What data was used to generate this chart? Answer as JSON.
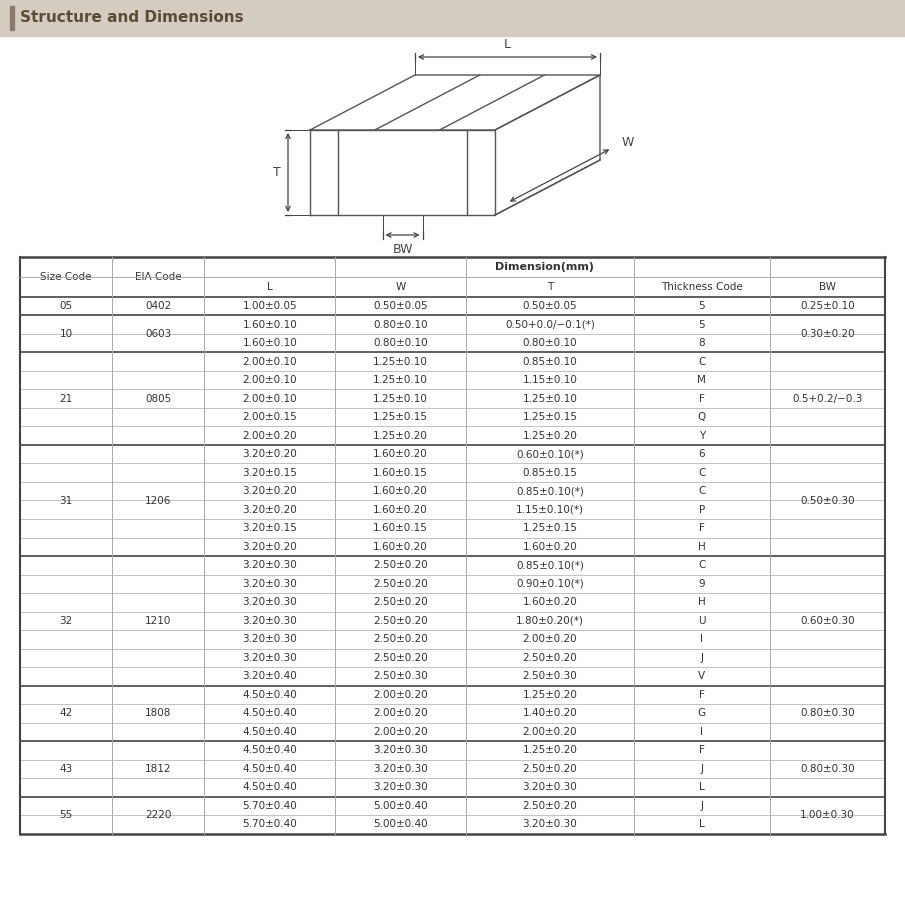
{
  "title": "Structure and Dimensions",
  "title_bar_color": "#d4ccc0",
  "title_accent_color": "#8a7a6a",
  "title_text_color": "#5a4a3a",
  "bg_color": "#ffffff",
  "line_color": "#aaaaaa",
  "thick_line_color": "#444444",
  "text_color": "#333333",
  "rows": [
    [
      "05",
      "0402",
      "1.00±0.05",
      "0.50±0.05",
      "0.50±0.05",
      "5",
      "0.25±0.10"
    ],
    [
      "10",
      "0603",
      "1.60±0.10",
      "0.80±0.10",
      "0.50+0.0/−0.1(*)",
      "5",
      "0.30±0.20"
    ],
    [
      "",
      "",
      "1.60±0.10",
      "0.80±0.10",
      "0.80±0.10",
      "8",
      ""
    ],
    [
      "21",
      "0805",
      "2.00±0.10",
      "1.25±0.10",
      "0.85±0.10",
      "C",
      "0.5+0.2/−0.3"
    ],
    [
      "",
      "",
      "2.00±0.10",
      "1.25±0.10",
      "1.15±0.10",
      "M",
      ""
    ],
    [
      "",
      "",
      "2.00±0.10",
      "1.25±0.10",
      "1.25±0.10",
      "F",
      ""
    ],
    [
      "",
      "",
      "2.00±0.15",
      "1.25±0.15",
      "1.25±0.15",
      "Q",
      ""
    ],
    [
      "",
      "",
      "2.00±0.20",
      "1.25±0.20",
      "1.25±0.20",
      "Y",
      ""
    ],
    [
      "31",
      "1206",
      "3.20±0.20",
      "1.60±0.20",
      "0.60±0.10(*)",
      "6",
      "0.50±0.30"
    ],
    [
      "",
      "",
      "3.20±0.15",
      "1.60±0.15",
      "0.85±0.15",
      "C",
      ""
    ],
    [
      "",
      "",
      "3.20±0.20",
      "1.60±0.20",
      "0.85±0.10(*)",
      "C",
      ""
    ],
    [
      "",
      "",
      "3.20±0.20",
      "1.60±0.20",
      "1.15±0.10(*)",
      "P",
      ""
    ],
    [
      "",
      "",
      "3.20±0.15",
      "1.60±0.15",
      "1.25±0.15",
      "F",
      ""
    ],
    [
      "",
      "",
      "3.20±0.20",
      "1.60±0.20",
      "1.60±0.20",
      "H",
      ""
    ],
    [
      "32",
      "1210",
      "3.20±0.30",
      "2.50±0.20",
      "0.85±0.10(*)",
      "C",
      "0.60±0.30"
    ],
    [
      "",
      "",
      "3.20±0.30",
      "2.50±0.20",
      "0.90±0.10(*)",
      "9",
      ""
    ],
    [
      "",
      "",
      "3.20±0.30",
      "2.50±0.20",
      "1.60±0.20",
      "H",
      ""
    ],
    [
      "",
      "",
      "3.20±0.30",
      "2.50±0.20",
      "1.80±0.20(*)",
      "U",
      ""
    ],
    [
      "",
      "",
      "3.20±0.30",
      "2.50±0.20",
      "2.00±0.20",
      "I",
      ""
    ],
    [
      "",
      "",
      "3.20±0.30",
      "2.50±0.20",
      "2.50±0.20",
      "J",
      ""
    ],
    [
      "",
      "",
      "3.20±0.40",
      "2.50±0.30",
      "2.50±0.30",
      "V",
      ""
    ],
    [
      "42",
      "1808",
      "4.50±0.40",
      "2.00±0.20",
      "1.25±0.20",
      "F",
      "0.80±0.30"
    ],
    [
      "",
      "",
      "4.50±0.40",
      "2.00±0.20",
      "1.40±0.20",
      "G",
      ""
    ],
    [
      "",
      "",
      "4.50±0.40",
      "2.00±0.20",
      "2.00±0.20",
      "I",
      ""
    ],
    [
      "43",
      "1812",
      "4.50±0.40",
      "3.20±0.30",
      "1.25±0.20",
      "F",
      "0.80±0.30"
    ],
    [
      "",
      "",
      "4.50±0.40",
      "3.20±0.30",
      "2.50±0.20",
      "J",
      ""
    ],
    [
      "",
      "",
      "4.50±0.40",
      "3.20±0.30",
      "3.20±0.30",
      "L",
      ""
    ],
    [
      "55",
      "2220",
      "5.70±0.40",
      "5.00±0.40",
      "2.50±0.20",
      "J",
      "1.00±0.30"
    ],
    [
      "",
      "",
      "5.70±0.40",
      "5.00±0.40",
      "3.20±0.30",
      "L",
      ""
    ]
  ],
  "groups": [
    {
      "size": "05",
      "eia": "0402",
      "r1": 0,
      "r2": 0,
      "bw": "0.25±0.10"
    },
    {
      "size": "10",
      "eia": "0603",
      "r1": 1,
      "r2": 2,
      "bw": "0.30±0.20"
    },
    {
      "size": "21",
      "eia": "0805",
      "r1": 3,
      "r2": 7,
      "bw": "0.5+0.2/−0.3"
    },
    {
      "size": "31",
      "eia": "1206",
      "r1": 8,
      "r2": 13,
      "bw": "0.50±0.30"
    },
    {
      "size": "32",
      "eia": "1210",
      "r1": 14,
      "r2": 20,
      "bw": "0.60±0.30"
    },
    {
      "size": "42",
      "eia": "1808",
      "r1": 21,
      "r2": 23,
      "bw": "0.80±0.30"
    },
    {
      "size": "43",
      "eia": "1812",
      "r1": 24,
      "r2": 26,
      "bw": "0.80±0.30"
    },
    {
      "size": "55",
      "eia": "2220",
      "r1": 27,
      "r2": 28,
      "bw": "1.00±0.30"
    }
  ]
}
